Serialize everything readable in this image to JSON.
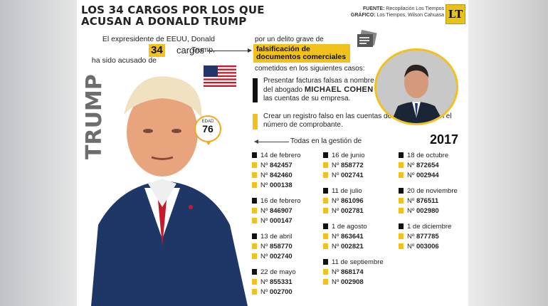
{
  "header": {
    "title": "LOS 34 CARGOS POR LOS QUE ACUSAN A DONALD TRUMP",
    "source_label": "FUENTE:",
    "source_value": "Recopilación Los Tiempos",
    "graphic_label": "GRÁFICO:",
    "graphic_value": "Los Tiempos, Wilson Cahuasa",
    "logo_text": "LT"
  },
  "intro": {
    "line1": "El expresidente de EEUU, Donald Trump,",
    "line2": "ha sido acusado de",
    "count": "34",
    "count_suffix": "cargos"
  },
  "crime": {
    "prefix": "por un delito grave de",
    "highlight": "falsificación de documentos comerciales",
    "suffix": "cometidos en los siguientes casos:"
  },
  "cases": [
    {
      "pre": "Presentar facturas falsas a nombre del abogado",
      "bold": "MICHAEL COHEN",
      "post": "en las cuentas de su empresa."
    },
    {
      "text": "Crear un registro falso en las cuentas de su empresa con el número de comprobante."
    }
  ],
  "trump": {
    "name_label": "TRUMP",
    "age_label": "EDAD",
    "age": "76"
  },
  "timeline": {
    "label": "Todas en la gestión de",
    "year": "2017"
  },
  "number_prefix": "Nº",
  "columns": [
    [
      {
        "date": "14 de febrero",
        "numbers": [
          "842457",
          "842460",
          "000138"
        ]
      },
      {
        "date": "16 de febrero",
        "numbers": [
          "846907",
          "000147"
        ]
      },
      {
        "date": "13 de abril",
        "numbers": [
          "858770",
          "002740"
        ]
      },
      {
        "date": "22 de mayo",
        "numbers": [
          "855331",
          "002700"
        ]
      }
    ],
    [
      {
        "date": "16 de junio",
        "numbers": [
          "858772",
          "002741"
        ]
      },
      {
        "date": "11 de julio",
        "numbers": [
          "861096",
          "002781"
        ]
      },
      {
        "date": "1 de agosto",
        "numbers": [
          "863641",
          "002821"
        ]
      },
      {
        "date": "11 de septiembre",
        "numbers": [
          "868174",
          "002908"
        ]
      }
    ],
    [
      {
        "date": "18 de octubre",
        "numbers": [
          "872654",
          "002944"
        ]
      },
      {
        "date": "20 de noviembre",
        "numbers": [
          "876511",
          "002980"
        ]
      },
      {
        "date": "1 de diciembre",
        "numbers": [
          "877785",
          "003006"
        ]
      }
    ]
  ],
  "colors": {
    "accent": "#f2c11c",
    "dark": "#111111"
  }
}
